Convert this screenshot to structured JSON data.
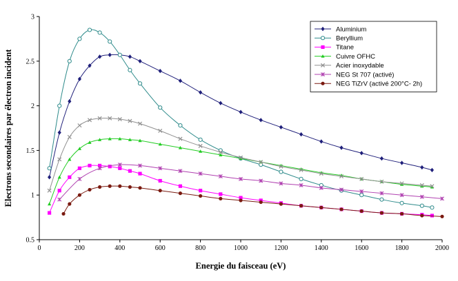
{
  "chart_data": {
    "type": "line",
    "title": "",
    "xlabel": "Energie du faisceau (eV)",
    "ylabel": "Electrons secondaires par électron incident",
    "xlim": [
      0,
      2000
    ],
    "ylim": [
      0.5,
      3
    ],
    "xticks": [
      "0",
      "200",
      "400",
      "600",
      "800",
      "1000",
      "1200",
      "1400",
      "1600",
      "1800",
      "2000"
    ],
    "yticks": [
      "0.5",
      "1",
      "1.5",
      "2",
      "2.5",
      "3"
    ],
    "grid": false,
    "legend_position": "top-right",
    "series": [
      {
        "name": "Aluminium",
        "color": "#1f1f7a",
        "marker": "diamond",
        "x": [
          50,
          100,
          150,
          200,
          250,
          300,
          350,
          400,
          450,
          500,
          600,
          700,
          800,
          900,
          1000,
          1100,
          1200,
          1300,
          1400,
          1500,
          1600,
          1700,
          1800,
          1900,
          1950
        ],
        "y": [
          1.2,
          1.7,
          2.05,
          2.3,
          2.45,
          2.55,
          2.57,
          2.57,
          2.55,
          2.5,
          2.39,
          2.28,
          2.15,
          2.03,
          1.93,
          1.84,
          1.76,
          1.68,
          1.6,
          1.53,
          1.47,
          1.41,
          1.36,
          1.31,
          1.28
        ]
      },
      {
        "name": "Beryllium",
        "color": "#2e8b8b",
        "marker": "circle",
        "x": [
          50,
          100,
          150,
          200,
          250,
          300,
          350,
          400,
          450,
          500,
          600,
          700,
          800,
          900,
          1000,
          1100,
          1200,
          1300,
          1400,
          1500,
          1600,
          1700,
          1800,
          1900,
          1950
        ],
        "y": [
          1.3,
          2.0,
          2.5,
          2.75,
          2.85,
          2.82,
          2.72,
          2.57,
          2.4,
          2.25,
          1.98,
          1.78,
          1.62,
          1.5,
          1.41,
          1.34,
          1.26,
          1.18,
          1.11,
          1.05,
          1.0,
          0.95,
          0.91,
          0.88,
          0.86
        ]
      },
      {
        "name": "Titane",
        "color": "#ff00ff",
        "marker": "square",
        "x": [
          50,
          100,
          150,
          200,
          250,
          300,
          350,
          400,
          450,
          500,
          600,
          700,
          800,
          900,
          1000,
          1100,
          1200,
          1300,
          1400,
          1500,
          1600,
          1700,
          1800,
          1900,
          1950
        ],
        "y": [
          0.8,
          1.05,
          1.2,
          1.3,
          1.33,
          1.33,
          1.32,
          1.3,
          1.27,
          1.24,
          1.16,
          1.1,
          1.05,
          1.01,
          0.97,
          0.94,
          0.91,
          0.88,
          0.86,
          0.84,
          0.82,
          0.8,
          0.79,
          0.78,
          0.77
        ]
      },
      {
        "name": "Cuivre OFHC",
        "color": "#22cc22",
        "marker": "triangle",
        "x": [
          50,
          100,
          150,
          200,
          250,
          300,
          350,
          400,
          450,
          500,
          600,
          700,
          800,
          900,
          1000,
          1100,
          1200,
          1300,
          1400,
          1500,
          1600,
          1700,
          1800,
          1900,
          1950
        ],
        "y": [
          0.9,
          1.2,
          1.4,
          1.52,
          1.59,
          1.62,
          1.63,
          1.63,
          1.62,
          1.61,
          1.57,
          1.53,
          1.49,
          1.45,
          1.41,
          1.37,
          1.33,
          1.29,
          1.25,
          1.22,
          1.18,
          1.15,
          1.12,
          1.1,
          1.09
        ]
      },
      {
        "name": "Acier inoxydable",
        "color": "#909090",
        "marker": "x",
        "x": [
          50,
          100,
          150,
          200,
          250,
          300,
          350,
          400,
          450,
          500,
          600,
          700,
          800,
          900,
          1000,
          1100,
          1200,
          1300,
          1400,
          1500,
          1600,
          1700,
          1800,
          1900,
          1950
        ],
        "y": [
          1.05,
          1.4,
          1.65,
          1.78,
          1.84,
          1.86,
          1.86,
          1.85,
          1.83,
          1.8,
          1.72,
          1.63,
          1.55,
          1.48,
          1.42,
          1.37,
          1.32,
          1.28,
          1.24,
          1.21,
          1.18,
          1.15,
          1.13,
          1.11,
          1.1
        ]
      },
      {
        "name": "NEG St 707 (activé)",
        "color": "#b040b0",
        "marker": "star",
        "x": [
          100,
          200,
          300,
          400,
          500,
          600,
          700,
          800,
          900,
          1000,
          1100,
          1200,
          1300,
          1400,
          1500,
          1600,
          1700,
          1800,
          1900,
          2000
        ],
        "y": [
          0.95,
          1.18,
          1.3,
          1.34,
          1.33,
          1.3,
          1.27,
          1.24,
          1.21,
          1.18,
          1.16,
          1.13,
          1.11,
          1.08,
          1.06,
          1.04,
          1.02,
          1.0,
          0.98,
          0.96
        ]
      },
      {
        "name": "NEG TiZrV (activé 200°C- 2h)",
        "color": "#7a1a10",
        "marker": "dot",
        "x": [
          120,
          150,
          200,
          250,
          300,
          350,
          400,
          450,
          500,
          600,
          700,
          800,
          900,
          1000,
          1100,
          1200,
          1300,
          1400,
          1500,
          1600,
          1700,
          1800,
          1900,
          2000
        ],
        "y": [
          0.79,
          0.9,
          1.0,
          1.06,
          1.09,
          1.1,
          1.1,
          1.09,
          1.08,
          1.05,
          1.02,
          0.99,
          0.96,
          0.94,
          0.92,
          0.9,
          0.88,
          0.86,
          0.84,
          0.82,
          0.8,
          0.79,
          0.77,
          0.76
        ]
      }
    ]
  }
}
